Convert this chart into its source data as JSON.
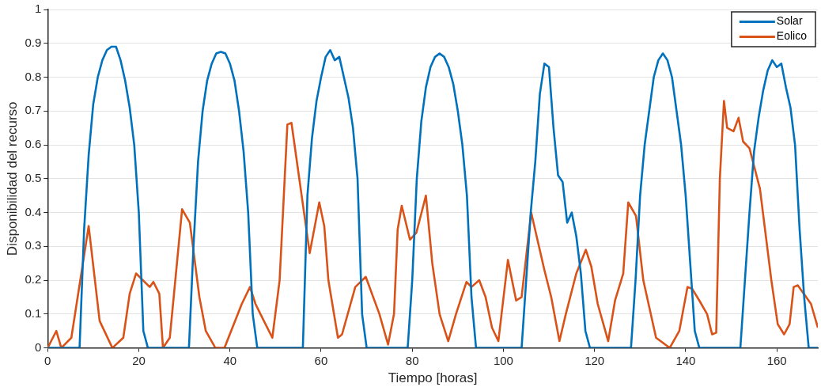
{
  "chart_data": {
    "type": "line",
    "xlabel": "Tiempo [horas]",
    "ylabel": "Disponibilidad del recurso",
    "xlim": [
      0,
      169
    ],
    "xticks": [
      0,
      20,
      40,
      60,
      80,
      100,
      120,
      140,
      160
    ],
    "ylim": [
      0,
      1
    ],
    "yticks": [
      0,
      0.1,
      0.2,
      0.3,
      0.4,
      0.5,
      0.6,
      0.7,
      0.8,
      0.9,
      1
    ],
    "grid": "y",
    "legend": "top right",
    "series": [
      {
        "name": "Solar",
        "color": "#0072bd",
        "x": [
          0,
          7,
          8,
          9,
          10,
          11,
          12,
          13,
          14,
          15,
          16,
          17,
          18,
          19,
          20,
          21,
          22,
          31,
          32,
          33,
          34,
          35,
          36,
          37,
          38,
          39,
          40,
          41,
          42,
          43,
          44,
          45,
          46,
          56,
          57,
          58,
          59,
          60,
          61,
          62,
          63,
          64,
          65,
          66,
          67,
          68,
          69,
          70,
          79,
          80,
          81,
          82,
          83,
          84,
          85,
          86,
          87,
          88,
          89,
          90,
          91,
          92,
          93,
          94,
          104,
          105,
          106,
          107,
          108,
          109,
          110,
          111,
          112,
          113,
          114,
          115,
          116,
          117,
          118,
          119,
          128,
          129,
          130,
          131,
          132,
          133,
          134,
          135,
          136,
          137,
          138,
          139,
          140,
          141,
          142,
          143,
          152,
          153,
          154,
          155,
          156,
          157,
          158,
          159,
          160,
          161,
          162,
          163,
          164,
          165,
          166,
          167,
          169
        ],
        "values": [
          0,
          0,
          0.35,
          0.57,
          0.72,
          0.8,
          0.85,
          0.88,
          0.89,
          0.89,
          0.85,
          0.79,
          0.71,
          0.6,
          0.4,
          0.05,
          0,
          0,
          0.3,
          0.55,
          0.7,
          0.79,
          0.84,
          0.87,
          0.875,
          0.87,
          0.84,
          0.79,
          0.7,
          0.58,
          0.4,
          0.1,
          0,
          0,
          0.45,
          0.62,
          0.73,
          0.8,
          0.86,
          0.88,
          0.85,
          0.86,
          0.8,
          0.74,
          0.65,
          0.5,
          0.1,
          0,
          0,
          0.2,
          0.5,
          0.67,
          0.77,
          0.83,
          0.86,
          0.87,
          0.86,
          0.83,
          0.78,
          0.7,
          0.6,
          0.45,
          0.15,
          0,
          0,
          0.2,
          0.4,
          0.55,
          0.75,
          0.84,
          0.83,
          0.65,
          0.51,
          0.49,
          0.37,
          0.4,
          0.33,
          0.22,
          0.05,
          0,
          0,
          0.2,
          0.45,
          0.6,
          0.7,
          0.8,
          0.85,
          0.87,
          0.85,
          0.8,
          0.7,
          0.6,
          0.45,
          0.25,
          0.05,
          0,
          0,
          0.2,
          0.4,
          0.58,
          0.68,
          0.76,
          0.82,
          0.85,
          0.83,
          0.84,
          0.77,
          0.71,
          0.6,
          0.35,
          0.15,
          0,
          0
        ]
      },
      {
        "name": "Eolico",
        "color": "#d95319",
        "x": [
          0,
          1.9,
          3,
          5.2,
          9,
          11.4,
          14.2,
          16.6,
          18,
          19.4,
          22.4,
          23.2,
          24.5,
          25.3,
          26.8,
          29.5,
          31.2,
          33.3,
          34.7,
          36.8,
          38.8,
          42.6,
          44.4,
          45.6,
          46.7,
          49.3,
          50.9,
          52.6,
          53.5,
          57.5,
          59.6,
          60.7,
          61.6,
          63.7,
          64.6,
          67.5,
          69.8,
          72.8,
          74.7,
          76,
          76.8,
          77.7,
          79.5,
          80.9,
          83,
          84.4,
          86,
          87.9,
          89.6,
          91.9,
          93,
          94.7,
          96.1,
          97.5,
          98.9,
          99.6,
          101,
          102.8,
          104,
          106.1,
          109,
          110.5,
          112.3,
          113.7,
          116,
          118.1,
          119.3,
          120.7,
          123,
          124.5,
          126.3,
          127.4,
          129.1,
          130.7,
          133.5,
          136.5,
          138.6,
          140.4,
          141.4,
          143,
          144.7,
          145.8,
          146.7,
          147.5,
          148.4,
          149.1,
          150.5,
          151.6,
          152.6,
          154,
          156.3,
          158.8,
          160.2,
          161.6,
          162.8,
          163.7,
          164.6,
          167.5,
          169
        ],
        "values": [
          0,
          0.05,
          0,
          0.03,
          0.36,
          0.08,
          0,
          0.03,
          0.16,
          0.22,
          0.18,
          0.195,
          0.16,
          0,
          0.03,
          0.41,
          0.37,
          0.15,
          0.05,
          0,
          0,
          0.13,
          0.18,
          0.13,
          0.1,
          0.03,
          0.2,
          0.66,
          0.665,
          0.28,
          0.43,
          0.36,
          0.2,
          0.03,
          0.04,
          0.18,
          0.21,
          0.1,
          0.01,
          0.1,
          0.35,
          0.42,
          0.32,
          0.34,
          0.45,
          0.25,
          0.1,
          0.02,
          0.1,
          0.195,
          0.18,
          0.2,
          0.15,
          0.06,
          0.02,
          0.1,
          0.26,
          0.14,
          0.15,
          0.4,
          0.23,
          0.15,
          0.02,
          0.1,
          0.22,
          0.29,
          0.24,
          0.13,
          0.02,
          0.14,
          0.22,
          0.43,
          0.39,
          0.2,
          0.03,
          0,
          0.05,
          0.18,
          0.175,
          0.14,
          0.1,
          0.04,
          0.045,
          0.5,
          0.73,
          0.65,
          0.64,
          0.68,
          0.61,
          0.59,
          0.47,
          0.2,
          0.07,
          0.04,
          0.07,
          0.18,
          0.185,
          0.13,
          0.06
        ]
      }
    ]
  }
}
